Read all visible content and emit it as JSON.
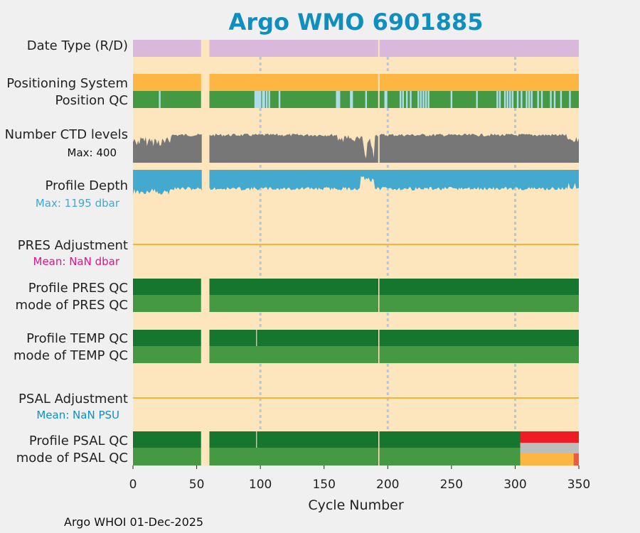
{
  "title": "Argo WMO 6901885",
  "footer": "Argo WHOI 01-Dec-2025",
  "colors": {
    "title": "#0f8fbf",
    "plot_bg": "#fde6bd",
    "date_type": "#dab8db",
    "qc_good_dark": "#16762d",
    "qc_good": "#459943",
    "position_gap": "#aedcea",
    "positioning": "#fdb642",
    "ctd": "#777777",
    "depth": "#43a9cf",
    "adjust_line": "#f2b43a",
    "grid": "#b9c6d6",
    "red": "#ee1c25",
    "grey": "#bdbdbd",
    "orange": "#fdb642",
    "salmon": "#f05a42",
    "pres_mean": "#e5118a",
    "psal_mean": "#0f8fbf"
  },
  "chart_data": {
    "type": "bar",
    "title": "Argo WMO 6901885",
    "xlabel": "Cycle Number",
    "xlim": [
      0,
      350
    ],
    "xticks": [
      0,
      50,
      100,
      150,
      200,
      250,
      300,
      350
    ],
    "grid_x": [
      100,
      200,
      300
    ],
    "marker_cycle": 193,
    "missing_cycles": [
      54,
      60
    ],
    "rows": [
      {
        "key": "date_type",
        "label": "Date Type (R/D)",
        "value": "R"
      },
      {
        "key": "positioning",
        "label": "Positioning System"
      },
      {
        "key": "position_qc",
        "label": "Position QC",
        "qc4_cycles": [
          21,
          96,
          97,
          98,
          99,
          100,
          102,
          103,
          105,
          107,
          115,
          160,
          161,
          162,
          171,
          172,
          183,
          198,
          199,
          210,
          212,
          215,
          218,
          224,
          226,
          228,
          230,
          232,
          250,
          270,
          286,
          288,
          292,
          294,
          296,
          298,
          302,
          305,
          309,
          311,
          313,
          318,
          321,
          328,
          331,
          336,
          343
        ]
      },
      {
        "key": "ctd_levels",
        "label": "Number CTD levels",
        "max_label": "Max: 400",
        "max": 400
      },
      {
        "key": "profile_depth",
        "label": "Profile Depth",
        "max_label": "Max: 1195 dbar",
        "max": 1195
      },
      {
        "key": "pres_adjust",
        "label": "PRES Adjustment",
        "mean_label": "Mean:  NaN dbar"
      },
      {
        "key": "pres_qc",
        "label": "Profile PRES QC",
        "qc": "A"
      },
      {
        "key": "pres_mode",
        "label": "mode of PRES QC",
        "qc": 1
      },
      {
        "key": "temp_qc",
        "label": "Profile TEMP QC",
        "qc": "A"
      },
      {
        "key": "temp_mode",
        "label": "mode of TEMP QC",
        "qc": 1
      },
      {
        "key": "psal_adjust",
        "label": "PSAL Adjustment",
        "mean_label": "Mean:  NaN PSU"
      },
      {
        "key": "psal_qc",
        "label": "Profile PSAL QC",
        "qc": "A",
        "qc_from_304": "F"
      },
      {
        "key": "psal_mode",
        "label": "mode of PSAL QC",
        "qc": 1,
        "qc_from_304": 3,
        "qc_from_346": 4
      }
    ]
  }
}
